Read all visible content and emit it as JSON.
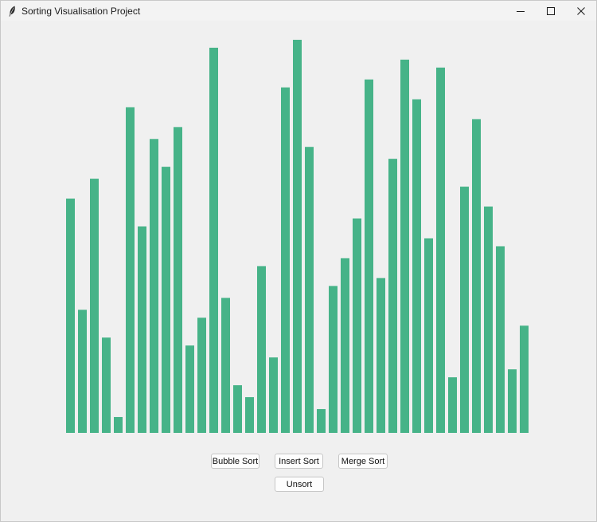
{
  "window": {
    "title": "Sorting Visualisation Project",
    "icon": "feather-icon",
    "controls": [
      "minimize-icon",
      "maximize-icon",
      "close-icon"
    ]
  },
  "buttons": {
    "bubble_sort": "Bubble Sort",
    "insert_sort": "Insert Sort",
    "merge_sort": "Merge Sort",
    "unsort": "Unsort"
  },
  "colors": {
    "bar": "#46b388",
    "background": "#f0f0f0"
  },
  "chart_data": {
    "type": "bar",
    "ylim": [
      0,
      100
    ],
    "values": [
      59,
      31,
      64,
      24,
      4,
      82,
      52,
      74,
      67,
      77,
      22,
      29,
      97,
      34,
      12,
      9,
      42,
      19,
      87,
      99,
      72,
      6,
      37,
      44,
      54,
      89,
      39,
      69,
      94,
      84,
      49,
      92,
      14,
      62,
      79,
      57,
      47,
      16,
      27
    ]
  }
}
